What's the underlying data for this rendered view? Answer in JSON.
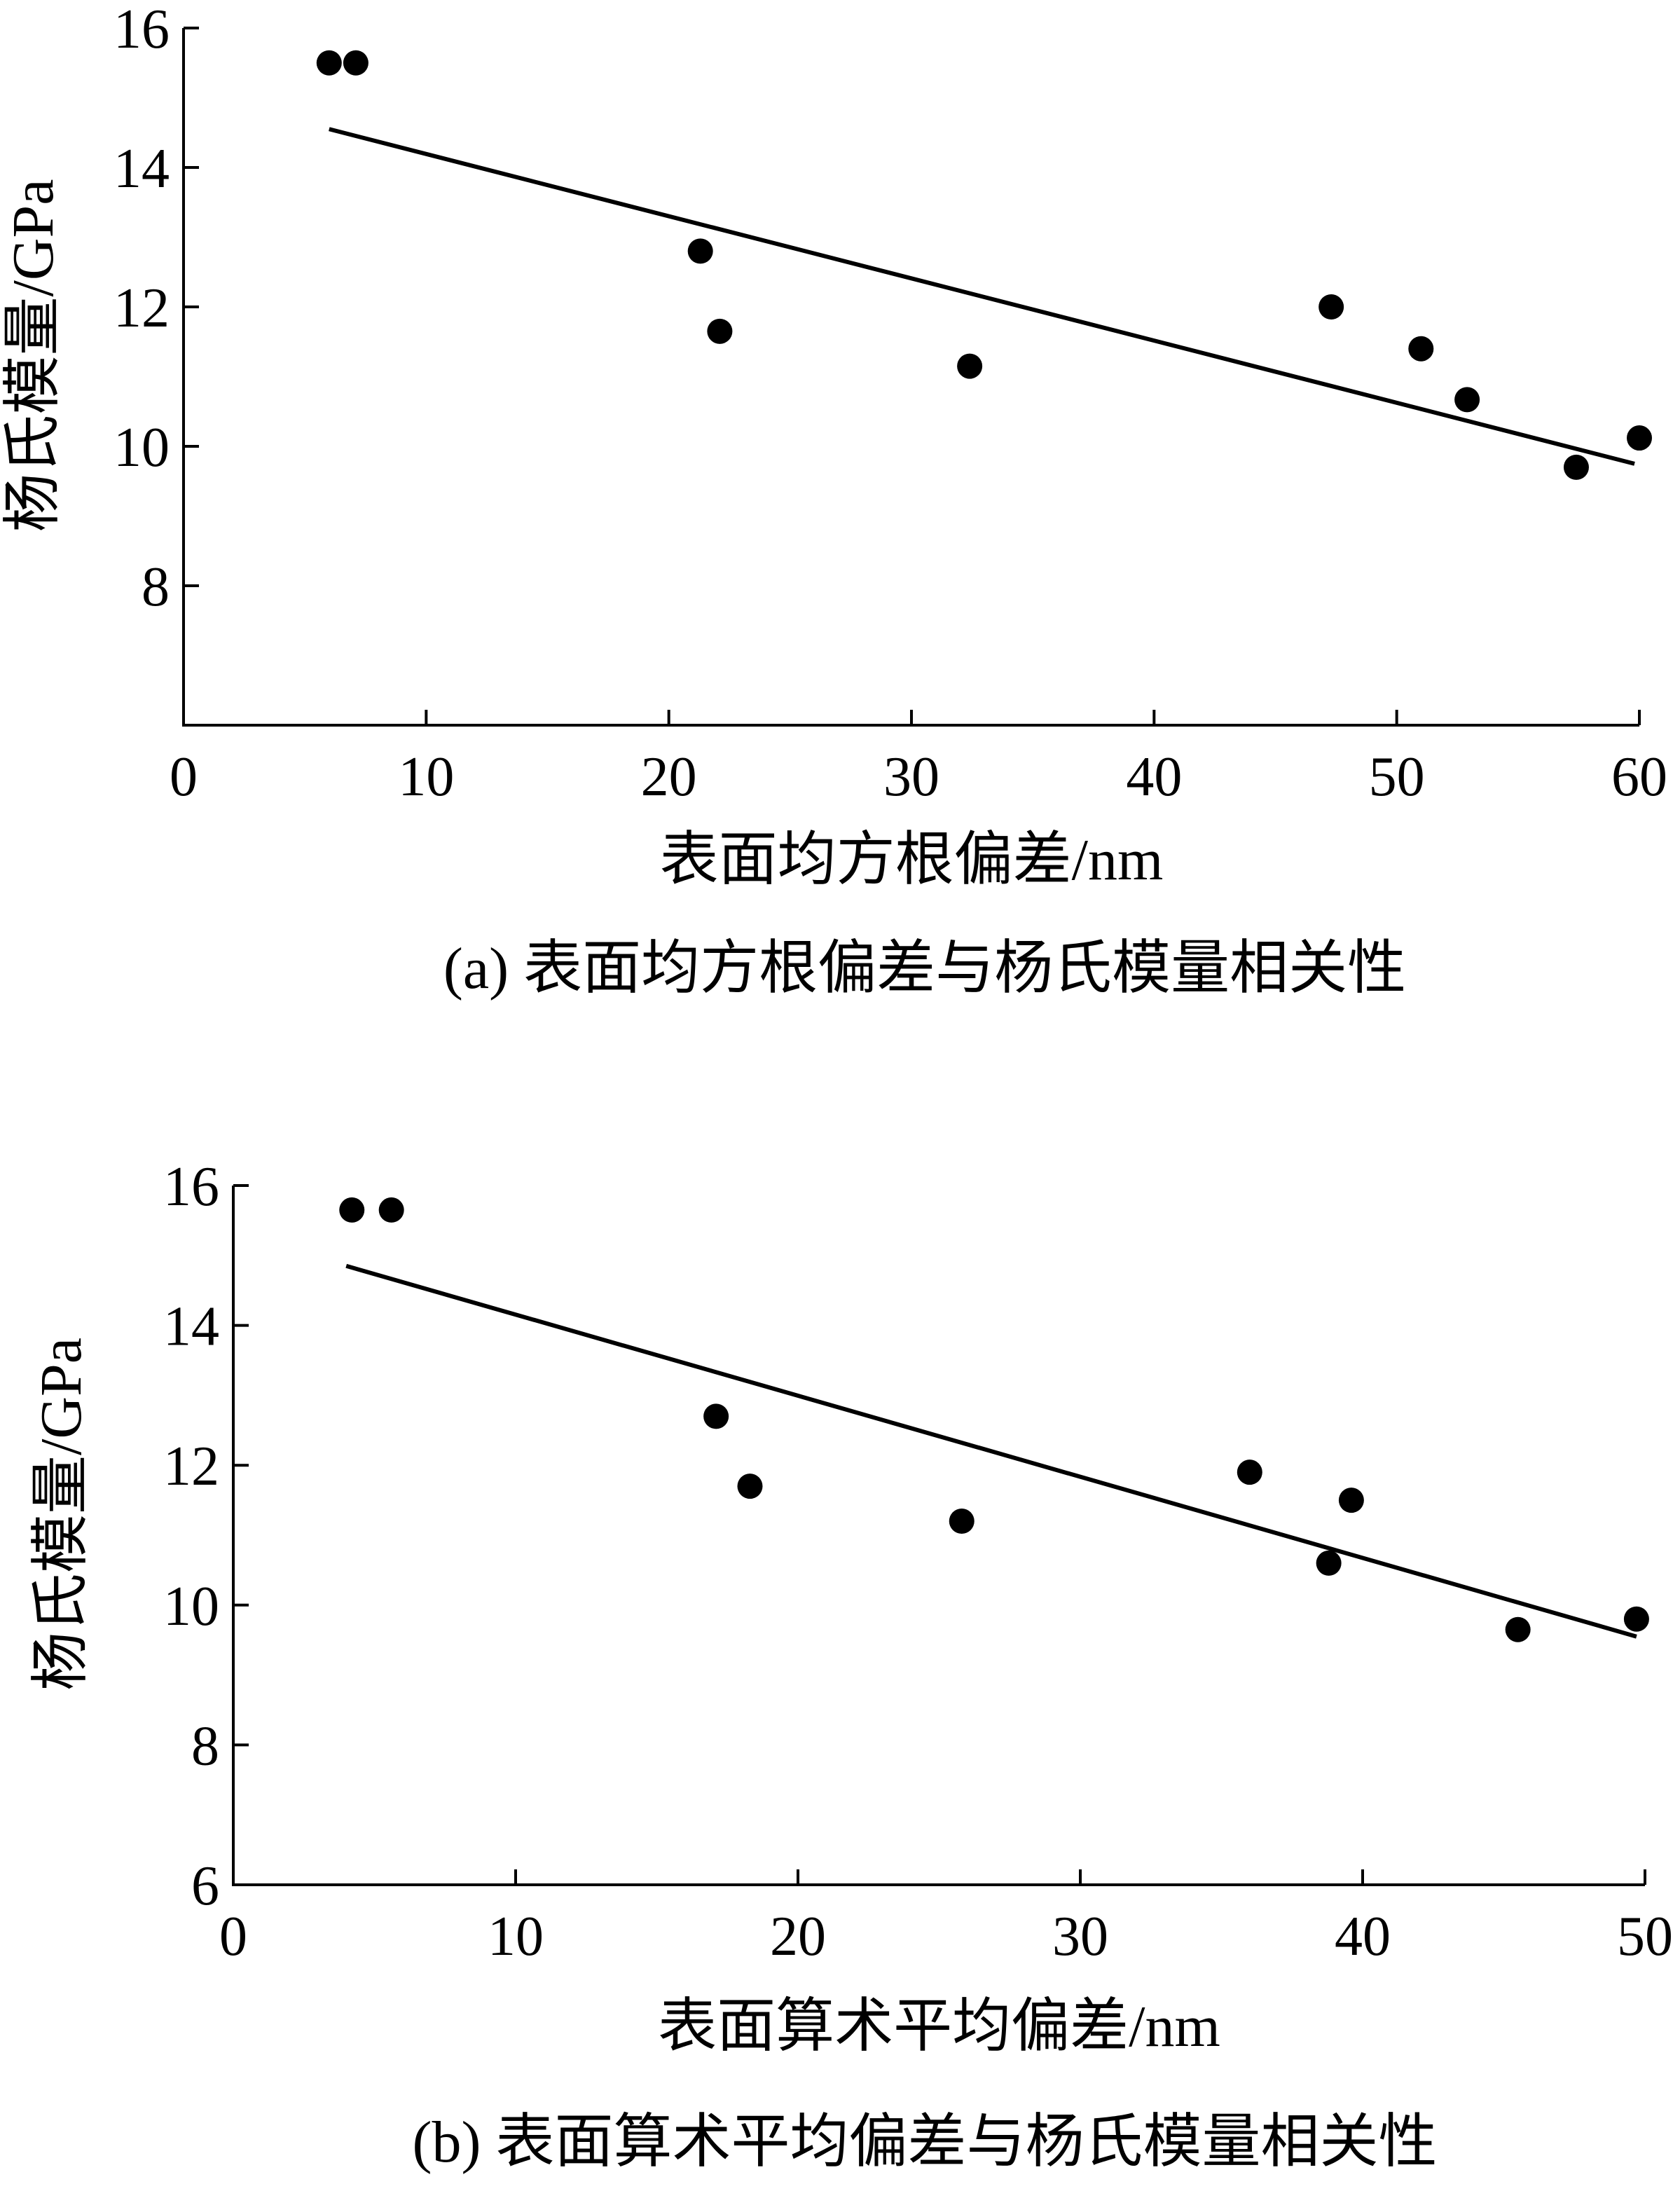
{
  "chart_data": [
    {
      "type": "scatter",
      "caption": "(a) 表面均方根偏差与杨氏模量相关性",
      "xlabel": "表面均方根偏差/nm",
      "ylabel": "杨氏模量/GPa",
      "xlim": [
        0,
        60
      ],
      "ylim": [
        6,
        16
      ],
      "xticks": [
        0,
        10,
        20,
        30,
        40,
        50,
        60
      ],
      "yticks": [
        8,
        10,
        12,
        14,
        16
      ],
      "grid": false,
      "points": [
        {
          "x": 6.0,
          "y": 15.5
        },
        {
          "x": 7.1,
          "y": 15.5
        },
        {
          "x": 21.3,
          "y": 12.8
        },
        {
          "x": 22.1,
          "y": 11.65
        },
        {
          "x": 32.4,
          "y": 11.15
        },
        {
          "x": 47.3,
          "y": 12.0
        },
        {
          "x": 51.0,
          "y": 11.4
        },
        {
          "x": 52.9,
          "y": 10.67
        },
        {
          "x": 57.4,
          "y": 9.7
        },
        {
          "x": 60.0,
          "y": 10.12
        }
      ],
      "trendline": {
        "x": [
          6.0,
          59.8
        ],
        "y": [
          14.55,
          9.75
        ]
      }
    },
    {
      "type": "scatter",
      "caption": "(b) 表面算术平均偏差与杨氏模量相关性",
      "xlabel": "表面算术平均偏差/nm",
      "ylabel": "杨氏模量/GPa",
      "xlim": [
        0,
        50
      ],
      "ylim": [
        6,
        16
      ],
      "xticks": [
        0,
        10,
        20,
        30,
        40,
        50
      ],
      "yticks": [
        6,
        8,
        10,
        12,
        14,
        16
      ],
      "grid": false,
      "points": [
        {
          "x": 4.2,
          "y": 15.65
        },
        {
          "x": 5.6,
          "y": 15.65
        },
        {
          "x": 17.1,
          "y": 12.7
        },
        {
          "x": 18.3,
          "y": 11.7
        },
        {
          "x": 25.8,
          "y": 11.2
        },
        {
          "x": 36.0,
          "y": 11.9
        },
        {
          "x": 38.8,
          "y": 10.6
        },
        {
          "x": 39.6,
          "y": 11.5
        },
        {
          "x": 45.5,
          "y": 9.65
        },
        {
          "x": 49.7,
          "y": 9.8
        }
      ],
      "trendline": {
        "x": [
          4.0,
          49.7
        ],
        "y": [
          14.85,
          9.55
        ]
      }
    }
  ]
}
